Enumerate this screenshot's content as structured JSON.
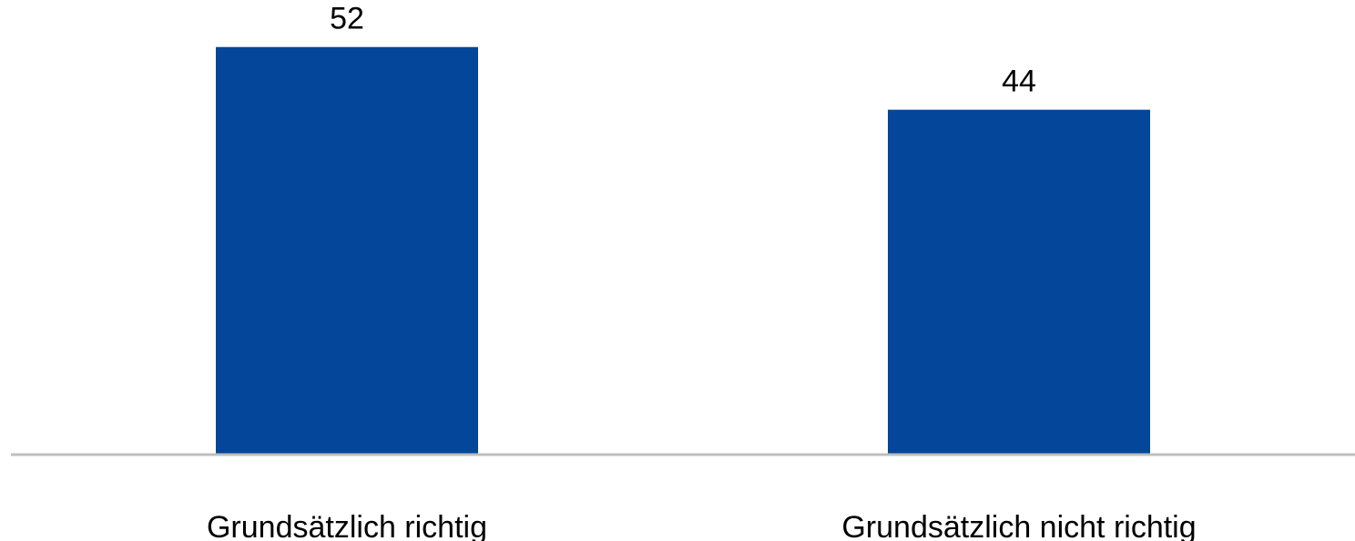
{
  "chart_data": {
    "type": "bar",
    "categories": [
      "Grundsätzlich richtig",
      "Grundsätzlich nicht richtig"
    ],
    "values": [
      52,
      44
    ],
    "data_labels": [
      "52",
      "44"
    ],
    "title": "",
    "xlabel": "",
    "ylabel": "",
    "ylim": [
      0,
      58
    ],
    "grid": false,
    "legend": "none",
    "bar_color": "#03469A",
    "axis_color": "#BFBFBF"
  }
}
